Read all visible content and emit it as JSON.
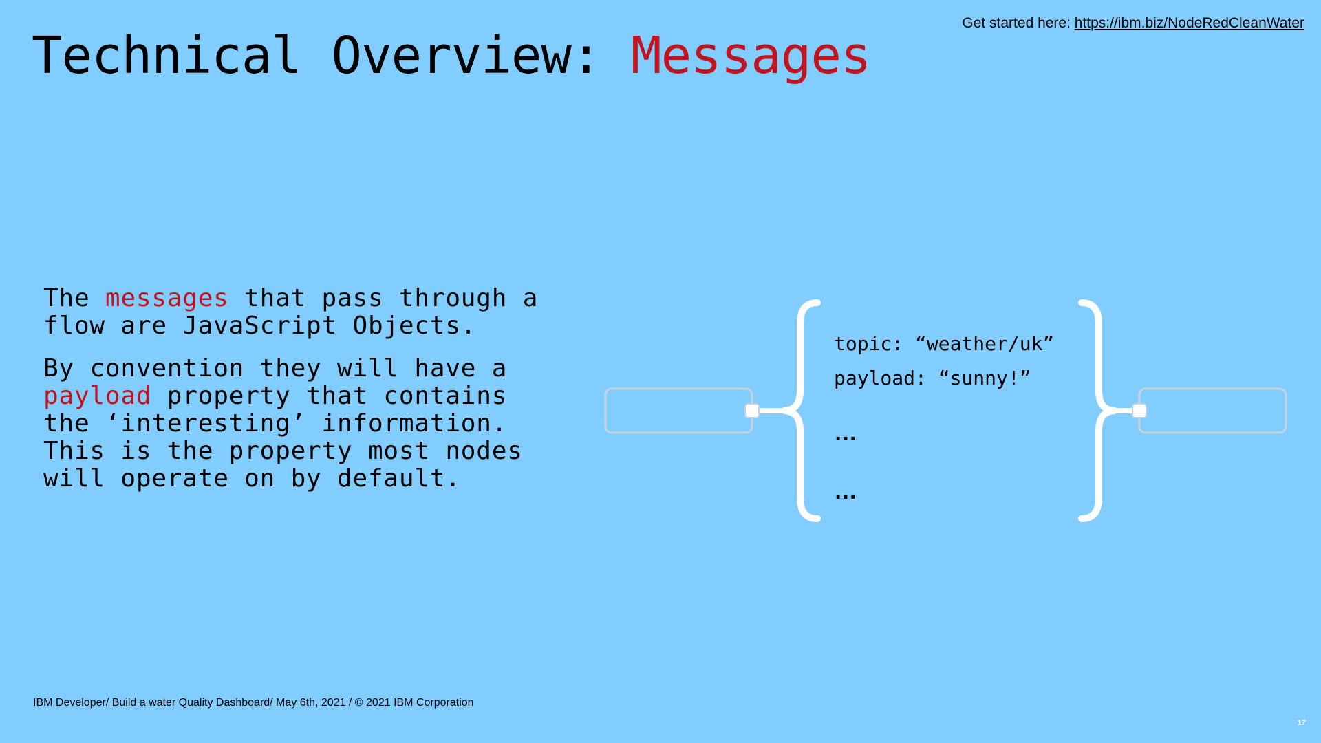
{
  "slide": {
    "title_prefix": "Technical Overview: ",
    "title_accent": "Messages",
    "get_started_label": "Get started here: ",
    "get_started_url": "https://ibm.biz/NodeRedCleanWater",
    "paragraph1": {
      "before": "The ",
      "highlight": "messages",
      "after": " that pass through a flow are JavaScript Objects."
    },
    "paragraph2": {
      "before": "By convention they will have a ",
      "highlight": "payload",
      "after": " property that contains the ‘interesting’ information. This is the property most nodes will operate on by default."
    },
    "message_object": {
      "lines": [
        "topic: “weather/uk”",
        "payload: “sunny!”"
      ],
      "ellipsis": [
        "…",
        "…"
      ]
    },
    "footer": "IBM Developer/ Build a water Quality Dashboard/ May 6th, 2021 / © 2021 IBM Corporation",
    "page_number": "17",
    "colors": {
      "background": "#82cdff",
      "accent": "#c0141e",
      "node_border": "#c8d2dc",
      "brace": "#ffffff"
    }
  }
}
